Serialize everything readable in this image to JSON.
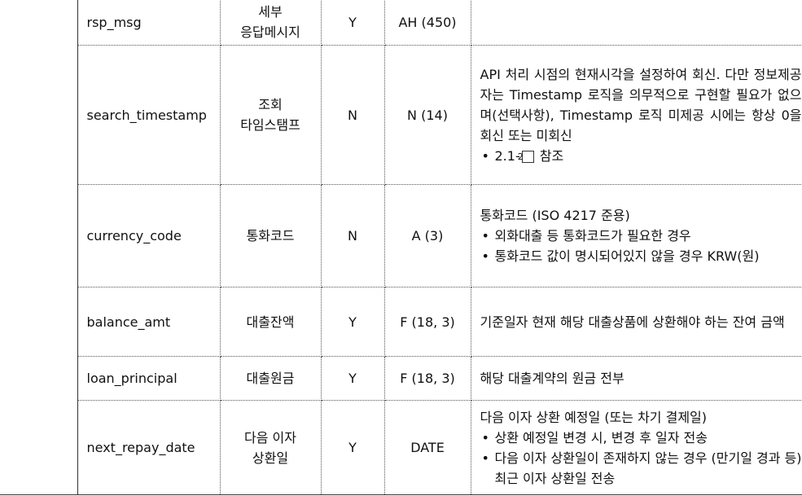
{
  "rows": [
    {
      "name": "rsp_msg",
      "label_lines": [
        "세부",
        "응답메시지"
      ],
      "required": "Y",
      "type": "AH (450)",
      "desc": []
    },
    {
      "name": "search_timestamp",
      "label_lines": [
        "조회",
        "타임스탬프"
      ],
      "required": "N",
      "type": "N (14)",
      "desc": [
        {
          "kind": "text",
          "text": "API 처리 시점의 현재시각을 설정하여 회신. 다만 정보제공자는 Timestamp 로직을 의무적으로 구현할 필요가 없으며(선택사항), Timestamp 로직 미제공 시에는 항상 0을 회신 또는 미회신"
        },
        {
          "kind": "bullet",
          "bullet": "•",
          "prefix": "2.1-",
          "boxed": "2",
          "suffix": " 참조"
        }
      ]
    },
    {
      "name": "currency_code",
      "label_lines": [
        "통화코드"
      ],
      "required": "N",
      "type": "A (3)",
      "desc": [
        {
          "kind": "text",
          "text": "통화코드 (ISO 4217 준용)"
        },
        {
          "kind": "bullet",
          "bullet": "•",
          "text": "외화대출 등 통화코드가 필요한 경우"
        },
        {
          "kind": "bullet",
          "bullet": "•",
          "text": "통화코드 값이 명시되어있지 않을 경우 KRW(원)"
        }
      ]
    },
    {
      "name": "balance_amt",
      "label_lines": [
        "대출잔액"
      ],
      "required": "Y",
      "type": "F (18, 3)",
      "desc": [
        {
          "kind": "text",
          "text": "기준일자 현재 해당 대출상품에 상환해야 하는 잔여 금액"
        }
      ]
    },
    {
      "name": "loan_principal",
      "label_lines": [
        "대출원금"
      ],
      "required": "Y",
      "type": "F (18, 3)",
      "desc": [
        {
          "kind": "text",
          "text": "해당 대출계약의 원금 전부"
        }
      ]
    },
    {
      "name": "next_repay_date",
      "label_lines": [
        "다음 이자",
        "상환일"
      ],
      "required": "Y",
      "type": "DATE",
      "desc": [
        {
          "kind": "text",
          "text": "다음 이자 상환 예정일 (또는 차기 결제일)"
        },
        {
          "kind": "bullet",
          "bullet": "•",
          "text": "상환 예정일 변경 시, 변경 후 일자 전송"
        },
        {
          "kind": "bullet",
          "bullet": "•",
          "text": "다음 이자 상환일이 존재하지 않는 경우 (만기일 경과 등) 최근 이자 상환일 전송"
        }
      ]
    }
  ]
}
